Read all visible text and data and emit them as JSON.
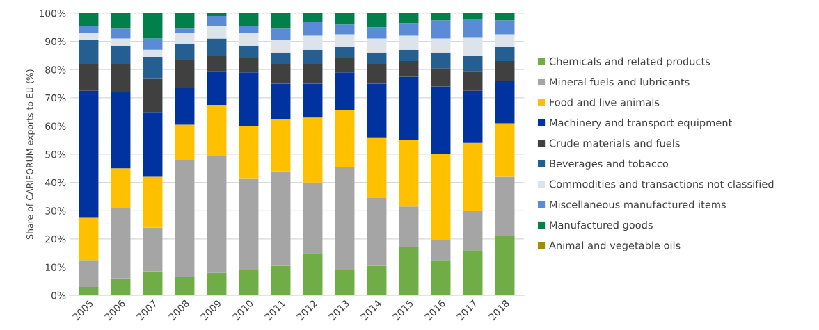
{
  "chart_data": {
    "type": "bar",
    "stacked": true,
    "ylabel": "Share of CARIFORUM exports to EU (%)",
    "categories": [
      "2005",
      "2006",
      "2007",
      "2008",
      "2009",
      "2010",
      "2011",
      "2012",
      "2013",
      "2014",
      "2015",
      "2016",
      "2017",
      "2018"
    ],
    "ylim": [
      0,
      100
    ],
    "yticks": [
      {
        "value": 0,
        "label": "0%"
      },
      {
        "value": 10,
        "label": "10%"
      },
      {
        "value": 20,
        "label": "20%"
      },
      {
        "value": 30,
        "label": "30%"
      },
      {
        "value": 40,
        "label": "40%"
      },
      {
        "value": 50,
        "label": "50%"
      },
      {
        "value": 60,
        "label": "60%"
      },
      {
        "value": 70,
        "label": "70%"
      },
      {
        "value": 80,
        "label": "80%"
      },
      {
        "value": 90,
        "label": "90%"
      },
      {
        "value": 100,
        "label": "100%"
      }
    ],
    "grid": "y",
    "legend": "right",
    "series": [
      {
        "name": "Chemicals and related products",
        "color": "#70ad47",
        "values": [
          3,
          6,
          8.5,
          6.5,
          8,
          9,
          10.5,
          15,
          9,
          10.5,
          17,
          12.5,
          16,
          21
        ]
      },
      {
        "name": "Mineral fuels and lubricants",
        "color": "#a5a5a5",
        "values": [
          9.5,
          25,
          15.5,
          41.5,
          41.5,
          32.5,
          33.5,
          25,
          36.5,
          24,
          14.5,
          7,
          14,
          21
        ]
      },
      {
        "name": "Food and live animals",
        "color": "#ffc000",
        "values": [
          15,
          14,
          18,
          12.5,
          18,
          18.5,
          18.5,
          23,
          20,
          21.5,
          23.5,
          30.5,
          24,
          19
        ]
      },
      {
        "name": "Machinery and transport equipment",
        "color": "#0033a0",
        "values": [
          45,
          27,
          23,
          13,
          12,
          19,
          12.5,
          12,
          13.5,
          19,
          22.5,
          24,
          18.5,
          15
        ]
      },
      {
        "name": "Crude materials and fuels",
        "color": "#404040",
        "values": [
          9.5,
          10,
          12,
          10,
          5.5,
          5,
          7,
          7,
          5,
          7,
          5.5,
          6.5,
          7,
          7
        ]
      },
      {
        "name": "Beverages and tobacco",
        "color": "#255e91",
        "values": [
          8.5,
          6.5,
          7.5,
          5.5,
          6,
          4.5,
          4,
          5,
          4,
          4,
          4,
          5.5,
          5.5,
          5
        ]
      },
      {
        "name": "Commodities and transactions not classified",
        "color": "#dde3ea",
        "values": [
          2.5,
          2.5,
          2.5,
          4,
          4.5,
          4.5,
          4.5,
          5,
          4.5,
          5,
          5,
          5,
          6.5,
          4.5
        ]
      },
      {
        "name": "Miscellaneous manufactured items",
        "color": "#5b8bd6",
        "values": [
          2.5,
          3.5,
          4,
          1.5,
          3.5,
          2.5,
          4,
          5,
          3.5,
          4,
          4.5,
          6.5,
          6.5,
          5
        ]
      },
      {
        "name": "Manufactured goods",
        "color": "#00804a",
        "values": [
          4.5,
          5.5,
          9,
          5.5,
          1,
          4.5,
          5.5,
          3,
          4,
          5,
          3.5,
          2.5,
          2,
          2.5
        ]
      },
      {
        "name": "Animal and vegetable oils",
        "color": "#9c8f00",
        "values": [
          0,
          0,
          0,
          0,
          0,
          0,
          0,
          0,
          0,
          0,
          0,
          0,
          0,
          0
        ]
      }
    ]
  }
}
